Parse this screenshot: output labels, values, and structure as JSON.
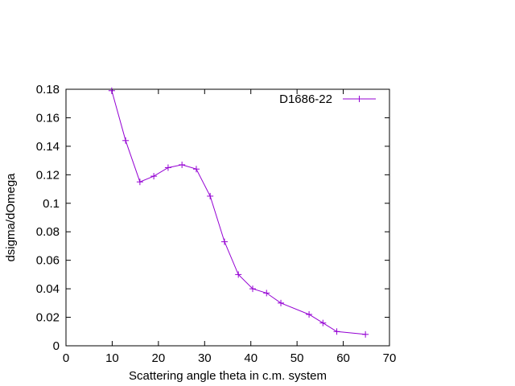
{
  "chart_data": {
    "type": "line",
    "title": "",
    "xlabel": "Scattering angle theta in c.m. system",
    "ylabel": "dsigma/dOmega",
    "xlim": [
      0,
      70
    ],
    "ylim": [
      0,
      0.18
    ],
    "grid": false,
    "legend_position": "top-right",
    "x_ticks": [
      {
        "value": 0,
        "label": "0"
      },
      {
        "value": 10,
        "label": "10"
      },
      {
        "value": 20,
        "label": "20"
      },
      {
        "value": 30,
        "label": "30"
      },
      {
        "value": 40,
        "label": "40"
      },
      {
        "value": 50,
        "label": "50"
      },
      {
        "value": 60,
        "label": "60"
      },
      {
        "value": 70,
        "label": "70"
      }
    ],
    "y_ticks": [
      {
        "value": 0,
        "label": "0"
      },
      {
        "value": 0.02,
        "label": "0.02"
      },
      {
        "value": 0.04,
        "label": "0.04"
      },
      {
        "value": 0.06,
        "label": "0.06"
      },
      {
        "value": 0.08,
        "label": "0.08"
      },
      {
        "value": 0.1,
        "label": "0.1"
      },
      {
        "value": 0.12,
        "label": "0.12"
      },
      {
        "value": 0.14,
        "label": "0.14"
      },
      {
        "value": 0.16,
        "label": "0.16"
      },
      {
        "value": 0.18,
        "label": "0.18"
      }
    ],
    "series": [
      {
        "name": "D1686-22",
        "color": "#9400d3",
        "marker": "plus",
        "x": [
          9.9,
          12.9,
          16.0,
          19.0,
          22.1,
          25.1,
          28.2,
          31.2,
          34.3,
          37.3,
          40.4,
          43.4,
          46.5,
          52.6,
          55.6,
          58.6,
          64.8
        ],
        "y": [
          0.179,
          0.144,
          0.115,
          0.119,
          0.125,
          0.127,
          0.124,
          0.105,
          0.073,
          0.05,
          0.04,
          0.037,
          0.03,
          0.022,
          0.016,
          0.01,
          0.008
        ]
      }
    ]
  }
}
